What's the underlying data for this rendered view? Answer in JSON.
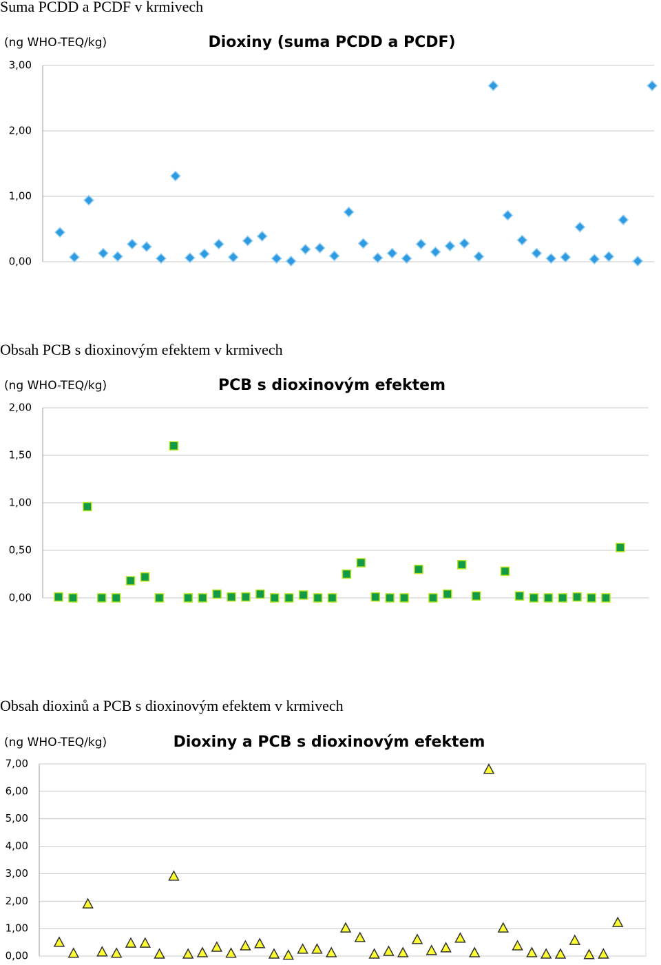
{
  "headings": [
    "Suma PCDD a PCDF v krmivech",
    "Obsah PCB s dioxinovým efektem v krmivech",
    "Obsah dioxinů a PCB s dioxinovým efektem v krmivech"
  ],
  "chart_data": [
    {
      "type": "scatter",
      "title": "Dioxiny (suma PCDD a PCDF)",
      "y_label": "(ng WHO-TEQ/kg)",
      "marker": "diamond",
      "color": "#2e9be0",
      "edge": "#9fd3f5",
      "categories": [
        null,
        null,
        null,
        null,
        null,
        null,
        null,
        null,
        null,
        null,
        null,
        null,
        null,
        null,
        null,
        null,
        null,
        null,
        null,
        null,
        null,
        null,
        null,
        null,
        null,
        null,
        null,
        null,
        null,
        null,
        null,
        null,
        null,
        null,
        null,
        null,
        null,
        null,
        null,
        null,
        null,
        null
      ],
      "values": [
        0.45,
        0.07,
        0.94,
        0.13,
        0.08,
        0.27,
        0.23,
        0.05,
        1.31,
        0.06,
        0.12,
        0.27,
        0.07,
        0.32,
        0.39,
        0.05,
        0.01,
        0.19,
        0.21,
        0.09,
        0.76,
        0.28,
        0.06,
        0.13,
        0.05,
        0.27,
        0.15,
        0.24,
        0.28,
        0.08,
        2.69,
        0.71,
        0.33,
        0.13,
        0.05,
        0.07,
        0.53,
        0.04,
        0.08,
        0.64,
        0.01,
        2.69
      ],
      "ylim": [
        0,
        3
      ],
      "yticks": [
        {
          "value": 0,
          "label": "0,00"
        },
        {
          "value": 1,
          "label": "1,00"
        },
        {
          "value": 2,
          "label": "2,00"
        },
        {
          "value": 3,
          "label": "3,00"
        }
      ],
      "grid": true
    },
    {
      "type": "scatter",
      "title": "PCB s dioxinovým efektem",
      "y_label": "(ng WHO-TEQ/kg)",
      "marker": "square",
      "color": "#129a47",
      "edge": "#b5e61d",
      "categories": [
        null,
        null,
        null,
        null,
        null,
        null,
        null,
        null,
        null,
        null,
        null,
        null,
        null,
        null,
        null,
        null,
        null,
        null,
        null,
        null,
        null,
        null,
        null,
        null,
        null,
        null,
        null,
        null,
        null,
        null,
        null,
        null,
        null,
        null,
        null,
        null,
        null,
        null,
        null,
        null
      ],
      "values": [
        0.01,
        0,
        0.96,
        0,
        0,
        0.18,
        0.22,
        0,
        1.6,
        0,
        0,
        0.04,
        0.01,
        0.01,
        0.04,
        0,
        0,
        0.03,
        0,
        0,
        0.25,
        0.37,
        0.01,
        0,
        0,
        0.3,
        0,
        0.04,
        0.35,
        0.02,
        null,
        0.28,
        0.02,
        0,
        0,
        0,
        0.01,
        0,
        0,
        0.53
      ],
      "ylim": [
        0,
        2
      ],
      "yticks": [
        {
          "value": 0,
          "label": "0,00"
        },
        {
          "value": 0.5,
          "label": "0,50"
        },
        {
          "value": 1,
          "label": "1,00"
        },
        {
          "value": 1.5,
          "label": "1,50"
        },
        {
          "value": 2,
          "label": "2,00"
        }
      ],
      "grid": true
    },
    {
      "type": "scatter",
      "title": "Dioxiny a PCB s dioxinovým efektem",
      "y_label": "(ng WHO-TEQ/kg)",
      "marker": "triangle",
      "color": "#ffff33",
      "edge": "#333333",
      "categories": [
        null,
        null,
        null,
        null,
        null,
        null,
        null,
        null,
        null,
        null,
        null,
        null,
        null,
        null,
        null,
        null,
        null,
        null,
        null,
        null,
        null,
        null,
        null,
        null,
        null,
        null,
        null,
        null,
        null,
        null,
        null,
        null,
        null,
        null,
        null,
        null,
        null,
        null,
        null,
        null
      ],
      "values": [
        0.48,
        0.08,
        1.88,
        0.13,
        0.08,
        0.45,
        0.45,
        0.05,
        2.89,
        0.05,
        0.1,
        0.3,
        0.08,
        0.35,
        0.43,
        0.05,
        0.01,
        0.23,
        0.23,
        0.1,
        1.0,
        0.65,
        0.05,
        0.15,
        0.1,
        0.58,
        0.18,
        0.28,
        0.63,
        0.1,
        6.78,
        1.0,
        0.35,
        0.1,
        0.05,
        0.05,
        0.55,
        0.03,
        0.05,
        1.2
      ],
      "ylim": [
        0,
        7
      ],
      "yticks": [
        {
          "value": 0,
          "label": "0,00"
        },
        {
          "value": 1,
          "label": "1,00"
        },
        {
          "value": 2,
          "label": "2,00"
        },
        {
          "value": 3,
          "label": "3,00"
        },
        {
          "value": 4,
          "label": "4,00"
        },
        {
          "value": 5,
          "label": "5,00"
        },
        {
          "value": 6,
          "label": "6,00"
        },
        {
          "value": 7,
          "label": "7,00"
        }
      ],
      "grid": true
    }
  ]
}
